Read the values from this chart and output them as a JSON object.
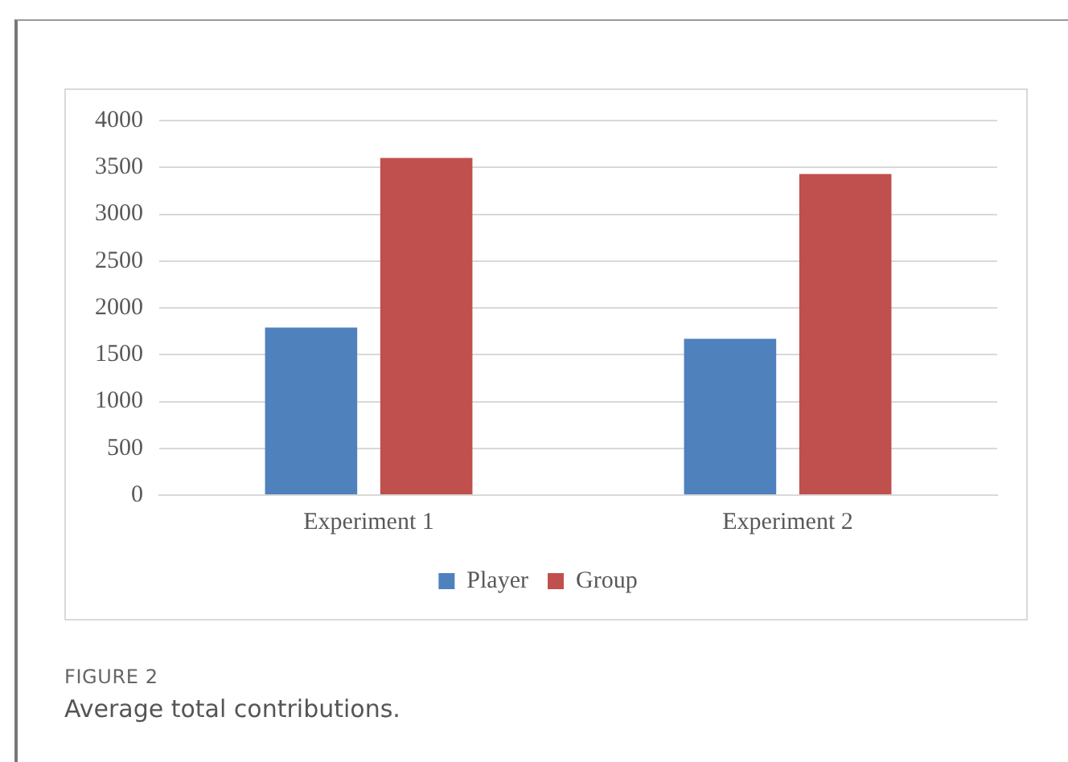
{
  "chart_data": {
    "type": "bar",
    "categories": [
      "Experiment 1",
      "Experiment 2"
    ],
    "series": [
      {
        "name": "Player",
        "color": "#4f81bd",
        "values": [
          1790,
          1670
        ]
      },
      {
        "name": "Group",
        "color": "#c0504d",
        "values": [
          3600,
          3430
        ]
      }
    ],
    "ylim": [
      0,
      4000
    ],
    "yticks": [
      0,
      500,
      1000,
      1500,
      2000,
      2500,
      3000,
      3500,
      4000
    ],
    "grid": "y",
    "legend": "bottom",
    "annotations": [
      "FIGURE 2",
      "Average total contributions."
    ]
  }
}
